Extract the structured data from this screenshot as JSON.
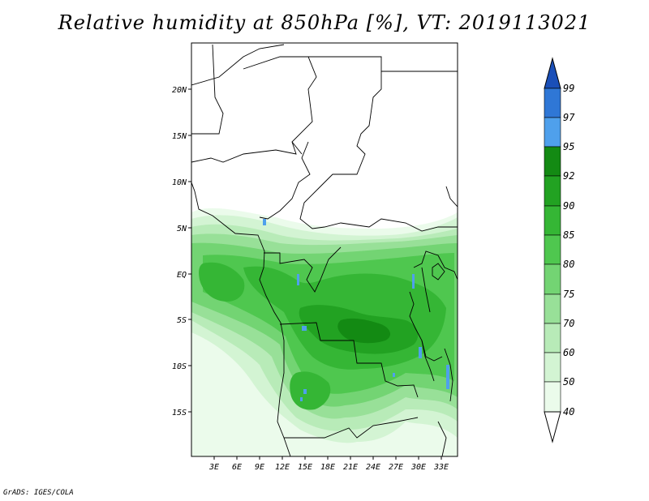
{
  "title": "Relative humidity at 850hPa [%], VT: 2019113021",
  "credit": "GrADS: IGES/COLA",
  "map": {
    "lat_labels": [
      "20N",
      "15N",
      "10N",
      "5N",
      "EQ",
      "5S",
      "10S",
      "15S"
    ],
    "lon_labels": [
      "3E",
      "6E",
      "9E",
      "12E",
      "15E",
      "18E",
      "21E",
      "24E",
      "27E",
      "30E",
      "33E"
    ]
  },
  "colorbar": {
    "labels": [
      "99",
      "97",
      "95",
      "92",
      "90",
      "85",
      "80",
      "75",
      "70",
      "60",
      "50",
      "40"
    ],
    "colors": [
      "#1a4fb8",
      "#2f77d6",
      "#4fa0ec",
      "#138a13",
      "#22a222",
      "#35b635",
      "#4fc74f",
      "#73d473",
      "#98e098",
      "#b8ebb8",
      "#d3f4d3",
      "#ebfbeb",
      "#ffffff"
    ]
  }
}
